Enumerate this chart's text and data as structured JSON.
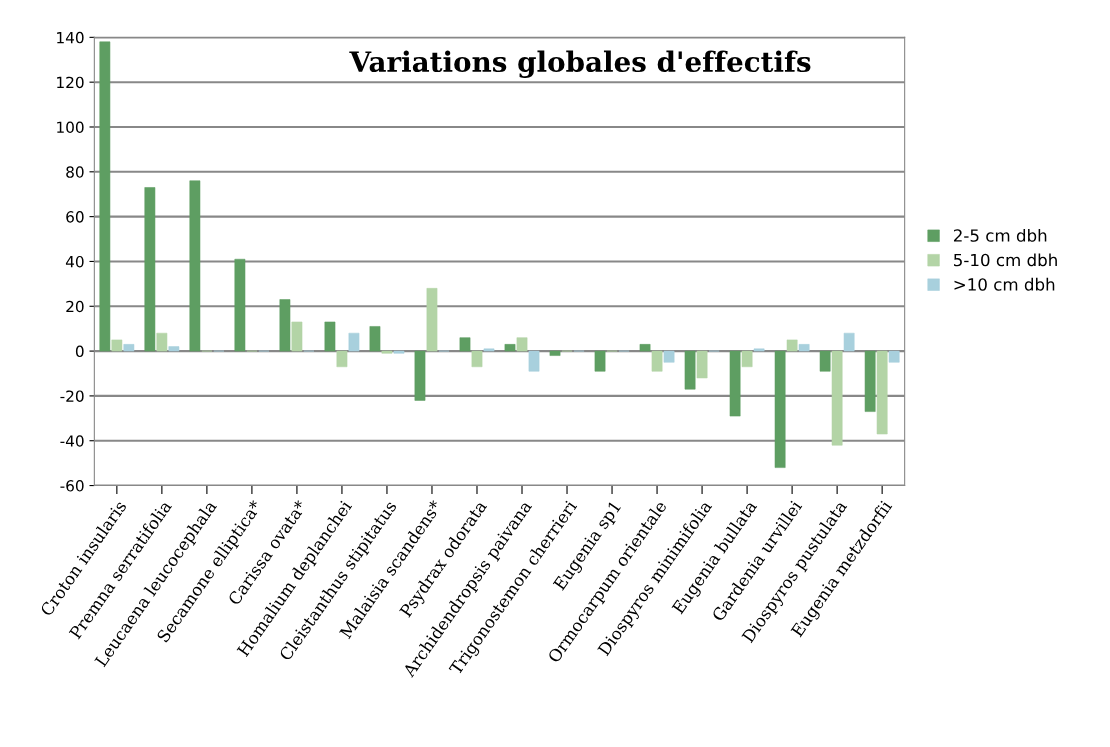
{
  "chart_data": {
    "type": "bar",
    "title": "Variations globales d'effectifs",
    "categories": [
      "Croton insularis",
      "Premna serratifolia",
      "Leucaena leucocephala",
      "Secamone elliptica*",
      "Carissa ovata*",
      "Homalium deplanchei",
      "Cleistanthus stipitatus",
      "Malaisia scandens*",
      "Psydrax odorata",
      "Archidendropsis paivana",
      "Trigonostemon cherrieri",
      "Eugenia sp1",
      "Ormocarpum orientale",
      "Diospyros minimifolia",
      "Eugenia bullata",
      "Gardenia urvillei",
      "Diospyros pustulata",
      "Eugenia metzdorfii"
    ],
    "series": [
      {
        "name": "2-5 cm dbh",
        "color": "#5e9e62",
        "values": [
          138,
          73,
          76,
          41,
          23,
          13,
          11,
          -22,
          6,
          3,
          -2,
          -9,
          3,
          -17,
          -29,
          -52,
          -9,
          -27
        ]
      },
      {
        "name": "5-10 cm dbh",
        "color": "#b3d4a6",
        "values": [
          5,
          8,
          0,
          0,
          13,
          -7,
          -1,
          28,
          -7,
          6,
          0,
          0,
          -9,
          -12,
          -7,
          5,
          -42,
          -37
        ]
      },
      {
        "name": ">10 cm dbh",
        "color": "#a8d0dd",
        "values": [
          3,
          2,
          0,
          0,
          0,
          8,
          -1,
          0,
          1,
          -9,
          0,
          0,
          -5,
          0,
          1,
          3,
          8,
          -5
        ]
      }
    ],
    "ylim": [
      -60,
      140
    ],
    "yticks": [
      -60,
      -40,
      -20,
      0,
      20,
      40,
      60,
      80,
      100,
      120,
      140
    ],
    "grid": "y",
    "legend": "right"
  }
}
